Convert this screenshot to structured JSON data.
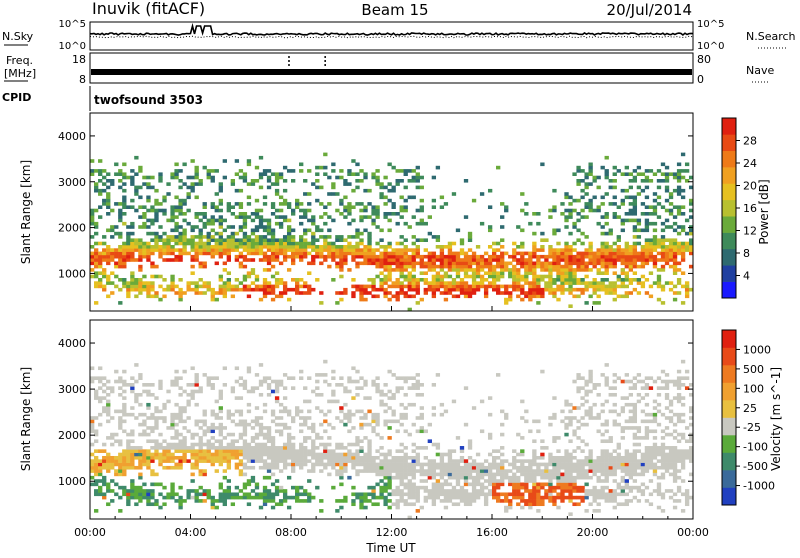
{
  "header": {
    "title_left": "Inuvik (fitACF)",
    "title_center": "Beam 15",
    "title_right": "20/Jul/2014"
  },
  "top_panels": {
    "nsky_label": "N.Sky",
    "nsearch_label": "N.Search",
    "nsky_ticks": [
      "10^5",
      "10^0"
    ],
    "nsearch_ticks": [
      "10^5",
      "10^0"
    ],
    "freq_label": "Freq.",
    "freq_unit": "[MHz]",
    "freq_ticks": [
      "18",
      "8"
    ],
    "nave_label": "Nave",
    "nave_ticks": [
      "80",
      "0"
    ],
    "cpid_label": "CPID",
    "cpid_value": "twofsound 3503"
  },
  "chart_data": [
    {
      "type": "heatmap",
      "name": "power",
      "ylabel": "Slant Range [km]",
      "yticks": [
        "4000",
        "3000",
        "2000",
        "1000"
      ],
      "ylim": [
        180,
        4500
      ],
      "colorbar_label": "Power [dB]",
      "colorbar_ticks": [
        "28",
        "24",
        "20",
        "16",
        "12",
        "8",
        "4"
      ],
      "colors": [
        "#1a1aff",
        "#2040a0",
        "#2e6a70",
        "#3e8a5a",
        "#6aaa3a",
        "#b8c030",
        "#e6c020",
        "#f0a020",
        "#ee7a18",
        "#e84a14",
        "#e02010"
      ]
    },
    {
      "type": "heatmap",
      "name": "velocity",
      "ylabel": "Slant Range [km]",
      "yticks": [
        "4000",
        "3000",
        "2000",
        "1000"
      ],
      "ylim": [
        180,
        4500
      ],
      "xlabel": "Time UT",
      "xticks": [
        "00:00",
        "04:00",
        "08:00",
        "12:00",
        "16:00",
        "20:00",
        "00:00"
      ],
      "colorbar_label": "Velocity [m s^-1]",
      "colorbar_ticks": [
        "1000",
        "500",
        "100",
        "25",
        "-25",
        "-100",
        "-500",
        "-1000"
      ],
      "colors": [
        "#2040c0",
        "#3a6a9a",
        "#3e8a6a",
        "#5aaa3a",
        "#c8c8c0",
        "#e8c040",
        "#f0a030",
        "#ee7a20",
        "#e84a18",
        "#e02010"
      ]
    }
  ]
}
